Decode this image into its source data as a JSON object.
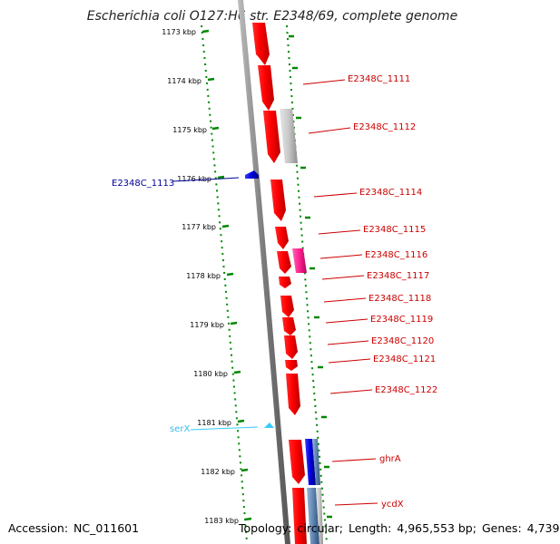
{
  "header": {
    "title": "Escherichia coli O127:H6 str. E2348/69, complete genome"
  },
  "footer": {
    "accession_label": "Accession:",
    "accession": "NC_011601",
    "topology_label": "Topology:",
    "topology": "circular;",
    "length_label": "Length:",
    "length": "4,965,553 bp;",
    "genes_label": "Genes:",
    "genes": "4,739"
  },
  "ruler": {
    "ticks": [
      "1173 kbp",
      "1174 kbp",
      "1175 kbp",
      "1176 kbp",
      "1177 kbp",
      "1178 kbp",
      "1179 kbp",
      "1180 kbp",
      "1181 kbp",
      "1182 kbp",
      "1183 kbp"
    ]
  },
  "colors": {
    "forward_gene": "#ff0000",
    "gene_label": "#cc0000",
    "reverse_gene": "#0000cc",
    "reverse_label": "#000099",
    "trna": "#33ccff",
    "pseudo": "#cccccc",
    "pink": "#ff3399",
    "ruler": "#008800",
    "backbone": "#888888"
  },
  "genes": [
    {
      "label": "E2348C_1111",
      "color": "forward_gene"
    },
    {
      "label": "E2348C_1112",
      "color": "forward_gene"
    },
    {
      "label": "E2348C_1113",
      "color": "reverse_gene"
    },
    {
      "label": "E2348C_1114",
      "color": "forward_gene"
    },
    {
      "label": "E2348C_1115",
      "color": "forward_gene"
    },
    {
      "label": "E2348C_1116",
      "color": "forward_gene"
    },
    {
      "label": "E2348C_1117",
      "color": "forward_gene"
    },
    {
      "label": "E2348C_1118",
      "color": "forward_gene"
    },
    {
      "label": "E2348C_1119",
      "color": "forward_gene"
    },
    {
      "label": "E2348C_1120",
      "color": "forward_gene"
    },
    {
      "label": "E2348C_1121",
      "color": "forward_gene"
    },
    {
      "label": "E2348C_1122",
      "color": "forward_gene"
    },
    {
      "label": "serX",
      "color": "trna"
    },
    {
      "label": "ghrA",
      "color": "forward_gene"
    },
    {
      "label": "ycdX",
      "color": "forward_gene"
    }
  ]
}
